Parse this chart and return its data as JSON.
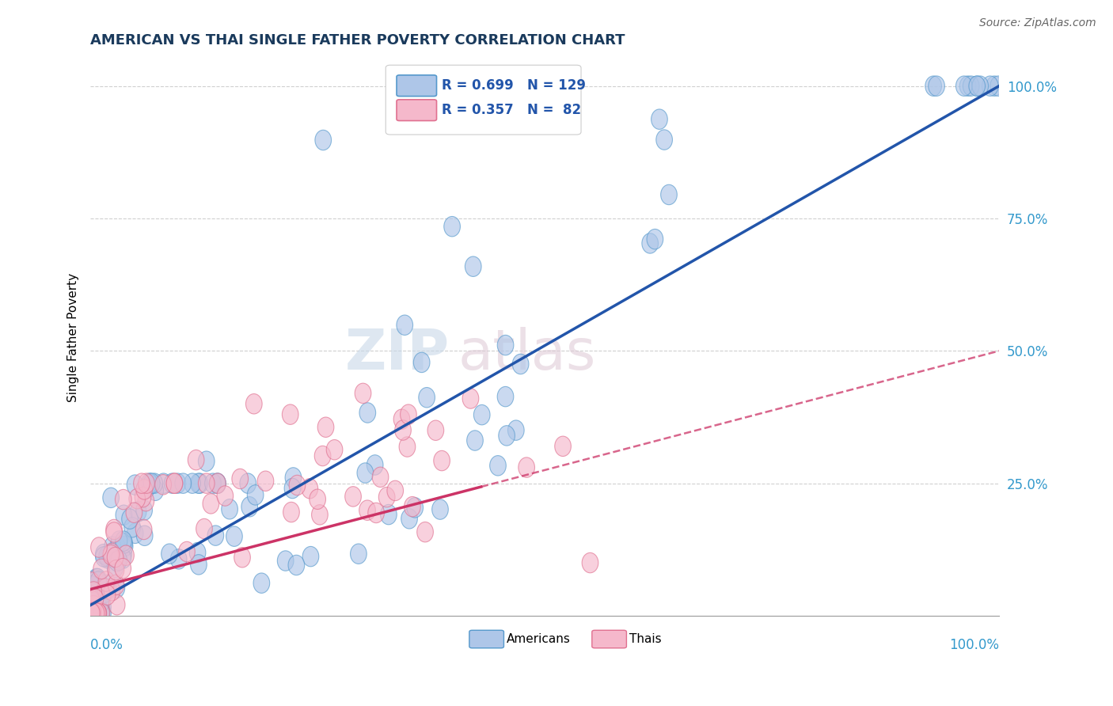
{
  "title": "AMERICAN VS THAI SINGLE FATHER POVERTY CORRELATION CHART",
  "source": "Source: ZipAtlas.com",
  "ylabel": "Single Father Poverty",
  "american_R": 0.699,
  "american_N": 129,
  "thai_R": 0.357,
  "thai_N": 82,
  "american_color": "#aec6e8",
  "american_edge_color": "#5599cc",
  "american_line_color": "#2255aa",
  "thai_color": "#f5b8cb",
  "thai_edge_color": "#e07090",
  "thai_line_color": "#cc3366",
  "background_color": "#ffffff",
  "grid_color": "#d0d0d0",
  "title_color": "#1a3a5c",
  "axis_label_color": "#3399cc",
  "ytick_values": [
    0.25,
    0.5,
    0.75,
    1.0
  ],
  "ytick_labels": [
    "25.0%",
    "50.0%",
    "75.0%",
    "100.0%"
  ],
  "xlim": [
    0.0,
    1.0
  ],
  "ylim": [
    0.0,
    1.05
  ],
  "watermark_zip_color": "#c8d8e8",
  "watermark_atlas_color": "#ddc8d4"
}
